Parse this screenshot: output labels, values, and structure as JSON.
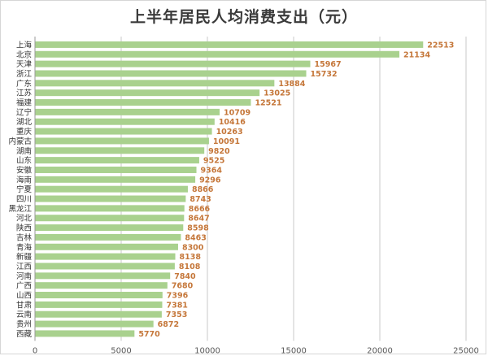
{
  "chart_data": {
    "type": "bar",
    "orientation": "horizontal",
    "title": "上半年居民人均消费支出（元）",
    "categories": [
      "上海",
      "北京",
      "天津",
      "浙江",
      "广东",
      "江苏",
      "福建",
      "辽宁",
      "湖北",
      "重庆",
      "内蒙古",
      "湖南",
      "山东",
      "安徽",
      "海南",
      "宁夏",
      "四川",
      "黑龙江",
      "河北",
      "陕西",
      "吉林",
      "青海",
      "新疆",
      "江西",
      "河南",
      "广西",
      "山西",
      "甘肃",
      "云南",
      "贵州",
      "西藏"
    ],
    "values": [
      22513,
      21134,
      15967,
      15732,
      13884,
      13025,
      12521,
      10709,
      10416,
      10263,
      10091,
      9820,
      9525,
      9364,
      9296,
      8866,
      8743,
      8666,
      8647,
      8598,
      8463,
      8300,
      8138,
      8108,
      7840,
      7680,
      7396,
      7381,
      7353,
      6872,
      5770
    ],
    "xlim": [
      0,
      25000
    ],
    "xticks": [
      0,
      5000,
      10000,
      15000,
      20000,
      25000
    ],
    "grid": true,
    "bar_color": "#a9d18e",
    "label_color": "#c5773a",
    "axis_color": "#595959",
    "grid_color": "#c8c8c8"
  }
}
